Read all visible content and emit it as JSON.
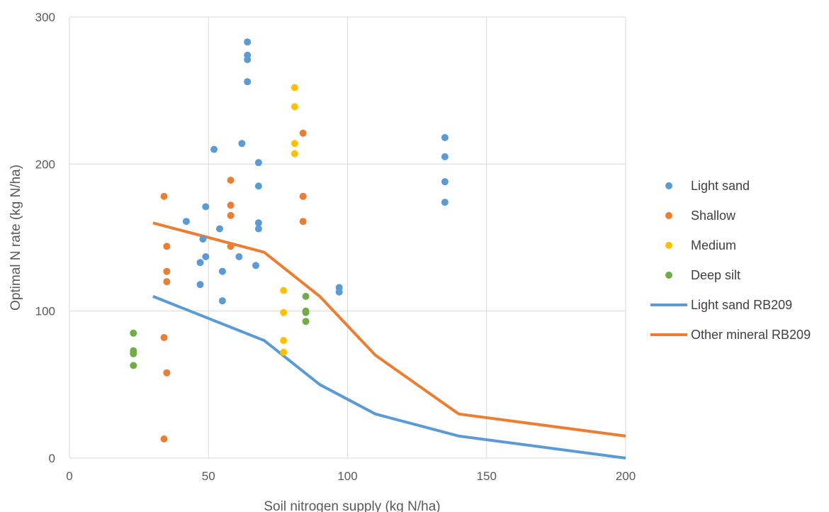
{
  "chart_data": {
    "type": "scatter",
    "title": "",
    "xlabel": "Soil nitrogen supply (kg N/ha)",
    "ylabel": "Optimal N rate (kg N/ha)",
    "xlim": [
      0,
      200
    ],
    "ylim": [
      0,
      300
    ],
    "xticks": [
      0,
      50,
      100,
      150,
      200
    ],
    "yticks": [
      0,
      100,
      200,
      300
    ],
    "grid": true,
    "legend_position": "right",
    "series": [
      {
        "name": "Light sand",
        "kind": "scatter",
        "color": "#5b9bd5",
        "x": [
          42,
          47,
          47,
          48,
          49,
          49,
          52,
          54,
          55,
          55,
          61,
          62,
          64,
          64,
          64,
          64,
          67,
          68,
          68,
          68,
          68,
          97,
          97,
          135,
          135,
          135,
          135
        ],
        "y": [
          161,
          118,
          133,
          149,
          137,
          171,
          210,
          156,
          127,
          107,
          137,
          214,
          283,
          274,
          271,
          256,
          131,
          201,
          185,
          160,
          156,
          116,
          113,
          218,
          205,
          188,
          174
        ]
      },
      {
        "name": "Shallow",
        "kind": "scatter",
        "color": "#ed7d31",
        "x": [
          34,
          34,
          34,
          35,
          35,
          35,
          35,
          58,
          58,
          58,
          58,
          84,
          84,
          84,
          84
        ],
        "y": [
          178,
          82,
          13,
          144,
          127,
          120,
          58,
          189,
          172,
          165,
          144,
          221,
          178,
          178,
          161
        ]
      },
      {
        "name": "Medium",
        "kind": "scatter",
        "color": "#ffc000",
        "x": [
          77,
          77,
          77,
          77,
          81,
          81,
          81,
          81
        ],
        "y": [
          114,
          99,
          80,
          72,
          252,
          239,
          214,
          207
        ]
      },
      {
        "name": "Deep silt",
        "kind": "scatter",
        "color": "#70ad47",
        "x": [
          23,
          23,
          23,
          23,
          85,
          85,
          85,
          85
        ],
        "y": [
          85,
          73,
          71,
          63,
          110,
          100,
          99,
          93
        ]
      },
      {
        "name": "Light sand RB209",
        "kind": "line",
        "color": "#5b9bd5",
        "x": [
          30,
          70,
          90,
          110,
          140,
          200
        ],
        "y": [
          110,
          80,
          50,
          30,
          15,
          0
        ]
      },
      {
        "name": "Other mineral RB209",
        "kind": "line",
        "color": "#ed7d31",
        "x": [
          30,
          70,
          90,
          110,
          140,
          200
        ],
        "y": [
          160,
          140,
          110,
          70,
          30,
          15
        ]
      }
    ]
  }
}
